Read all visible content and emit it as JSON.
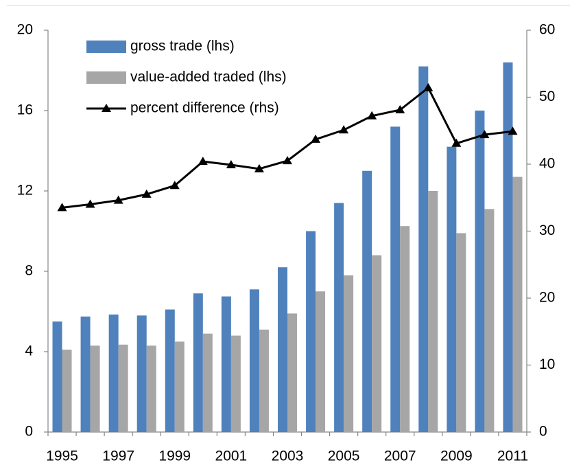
{
  "chart_data": {
    "type": "bar",
    "categories": [
      "1995",
      null,
      "1997",
      null,
      "1999",
      null,
      "2001",
      null,
      "2003",
      null,
      "2005",
      null,
      "2007",
      null,
      "2009",
      null,
      "2011"
    ],
    "series": [
      {
        "name": "gross trade (lhs)",
        "color": "#4f81bd",
        "values": [
          5.5,
          5.75,
          5.85,
          5.8,
          6.1,
          6.9,
          6.75,
          7.1,
          8.2,
          10.0,
          11.4,
          13.0,
          15.2,
          18.2,
          14.2,
          16.0,
          18.4
        ]
      },
      {
        "name": "value-added traded (lhs)",
        "color": "#a6a6a6",
        "values": [
          4.1,
          4.3,
          4.35,
          4.3,
          4.5,
          4.9,
          4.8,
          5.1,
          5.9,
          7.0,
          7.8,
          8.8,
          10.25,
          12.0,
          9.9,
          11.1,
          12.7
        ]
      },
      {
        "name": "percent difference (rhs)",
        "color": "#000000",
        "type": "line",
        "axis": "y2",
        "values": [
          33.5,
          34.0,
          34.6,
          35.5,
          36.8,
          40.4,
          39.9,
          39.3,
          40.5,
          43.7,
          45.1,
          47.2,
          48.1,
          51.4,
          43.1,
          44.4,
          44.9
        ]
      }
    ],
    "ylim": [
      0,
      20
    ],
    "yticks": [
      0,
      4,
      8,
      12,
      16,
      20
    ],
    "y2lim": [
      0,
      60
    ],
    "y2ticks": [
      0,
      10,
      20,
      30,
      40,
      50,
      60
    ],
    "legend": "upper-left"
  }
}
